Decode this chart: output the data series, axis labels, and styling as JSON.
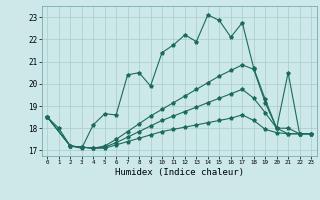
{
  "xlabel": "Humidex (Indice chaleur)",
  "bg_color": "#cce8e8",
  "grid_color": "#aacccc",
  "line_color": "#1a6b5a",
  "xlim": [
    -0.5,
    23.5
  ],
  "ylim": [
    16.75,
    23.5
  ],
  "yticks": [
    17,
    18,
    19,
    20,
    21,
    22,
    23
  ],
  "xticks": [
    0,
    1,
    2,
    3,
    4,
    5,
    6,
    7,
    8,
    9,
    10,
    11,
    12,
    13,
    14,
    15,
    16,
    17,
    18,
    19,
    20,
    21,
    22,
    23
  ],
  "curve1_x": [
    0,
    1,
    2,
    3,
    4,
    5,
    6,
    7,
    8,
    9,
    10,
    11,
    12,
    13,
    14,
    15,
    16,
    17,
    18,
    19,
    20,
    21,
    22,
    23
  ],
  "curve1_y": [
    18.5,
    18.0,
    17.2,
    17.1,
    18.15,
    18.65,
    18.6,
    20.4,
    20.5,
    19.9,
    21.4,
    21.75,
    22.2,
    21.9,
    23.1,
    22.85,
    22.1,
    22.75,
    20.7,
    19.3,
    18.0,
    20.5,
    17.75,
    17.75
  ],
  "curve2_x": [
    0,
    2,
    3,
    4,
    5,
    6,
    7,
    8,
    9,
    10,
    11,
    12,
    13,
    14,
    15,
    16,
    17,
    18,
    19,
    20,
    21,
    22,
    23
  ],
  "curve2_y": [
    18.5,
    17.2,
    17.15,
    17.1,
    17.2,
    17.5,
    17.85,
    18.2,
    18.55,
    18.85,
    19.15,
    19.45,
    19.75,
    20.05,
    20.35,
    20.6,
    20.85,
    20.65,
    19.15,
    18.0,
    18.0,
    17.75,
    17.75
  ],
  "curve3_x": [
    0,
    2,
    3,
    4,
    5,
    6,
    7,
    8,
    9,
    10,
    11,
    12,
    13,
    14,
    15,
    16,
    17,
    18,
    19,
    20,
    21,
    22,
    23
  ],
  "curve3_y": [
    18.5,
    17.2,
    17.15,
    17.1,
    17.15,
    17.35,
    17.6,
    17.85,
    18.1,
    18.35,
    18.55,
    18.75,
    18.95,
    19.15,
    19.35,
    19.55,
    19.75,
    19.35,
    18.7,
    18.0,
    17.75,
    17.75,
    17.75
  ],
  "curve4_x": [
    0,
    2,
    3,
    4,
    5,
    6,
    7,
    8,
    9,
    10,
    11,
    12,
    13,
    14,
    15,
    16,
    17,
    18,
    19,
    20,
    21,
    22,
    23
  ],
  "curve4_y": [
    18.5,
    17.2,
    17.15,
    17.1,
    17.1,
    17.25,
    17.4,
    17.55,
    17.7,
    17.85,
    17.95,
    18.05,
    18.15,
    18.25,
    18.35,
    18.45,
    18.6,
    18.35,
    17.95,
    17.8,
    17.75,
    17.75,
    17.75
  ]
}
